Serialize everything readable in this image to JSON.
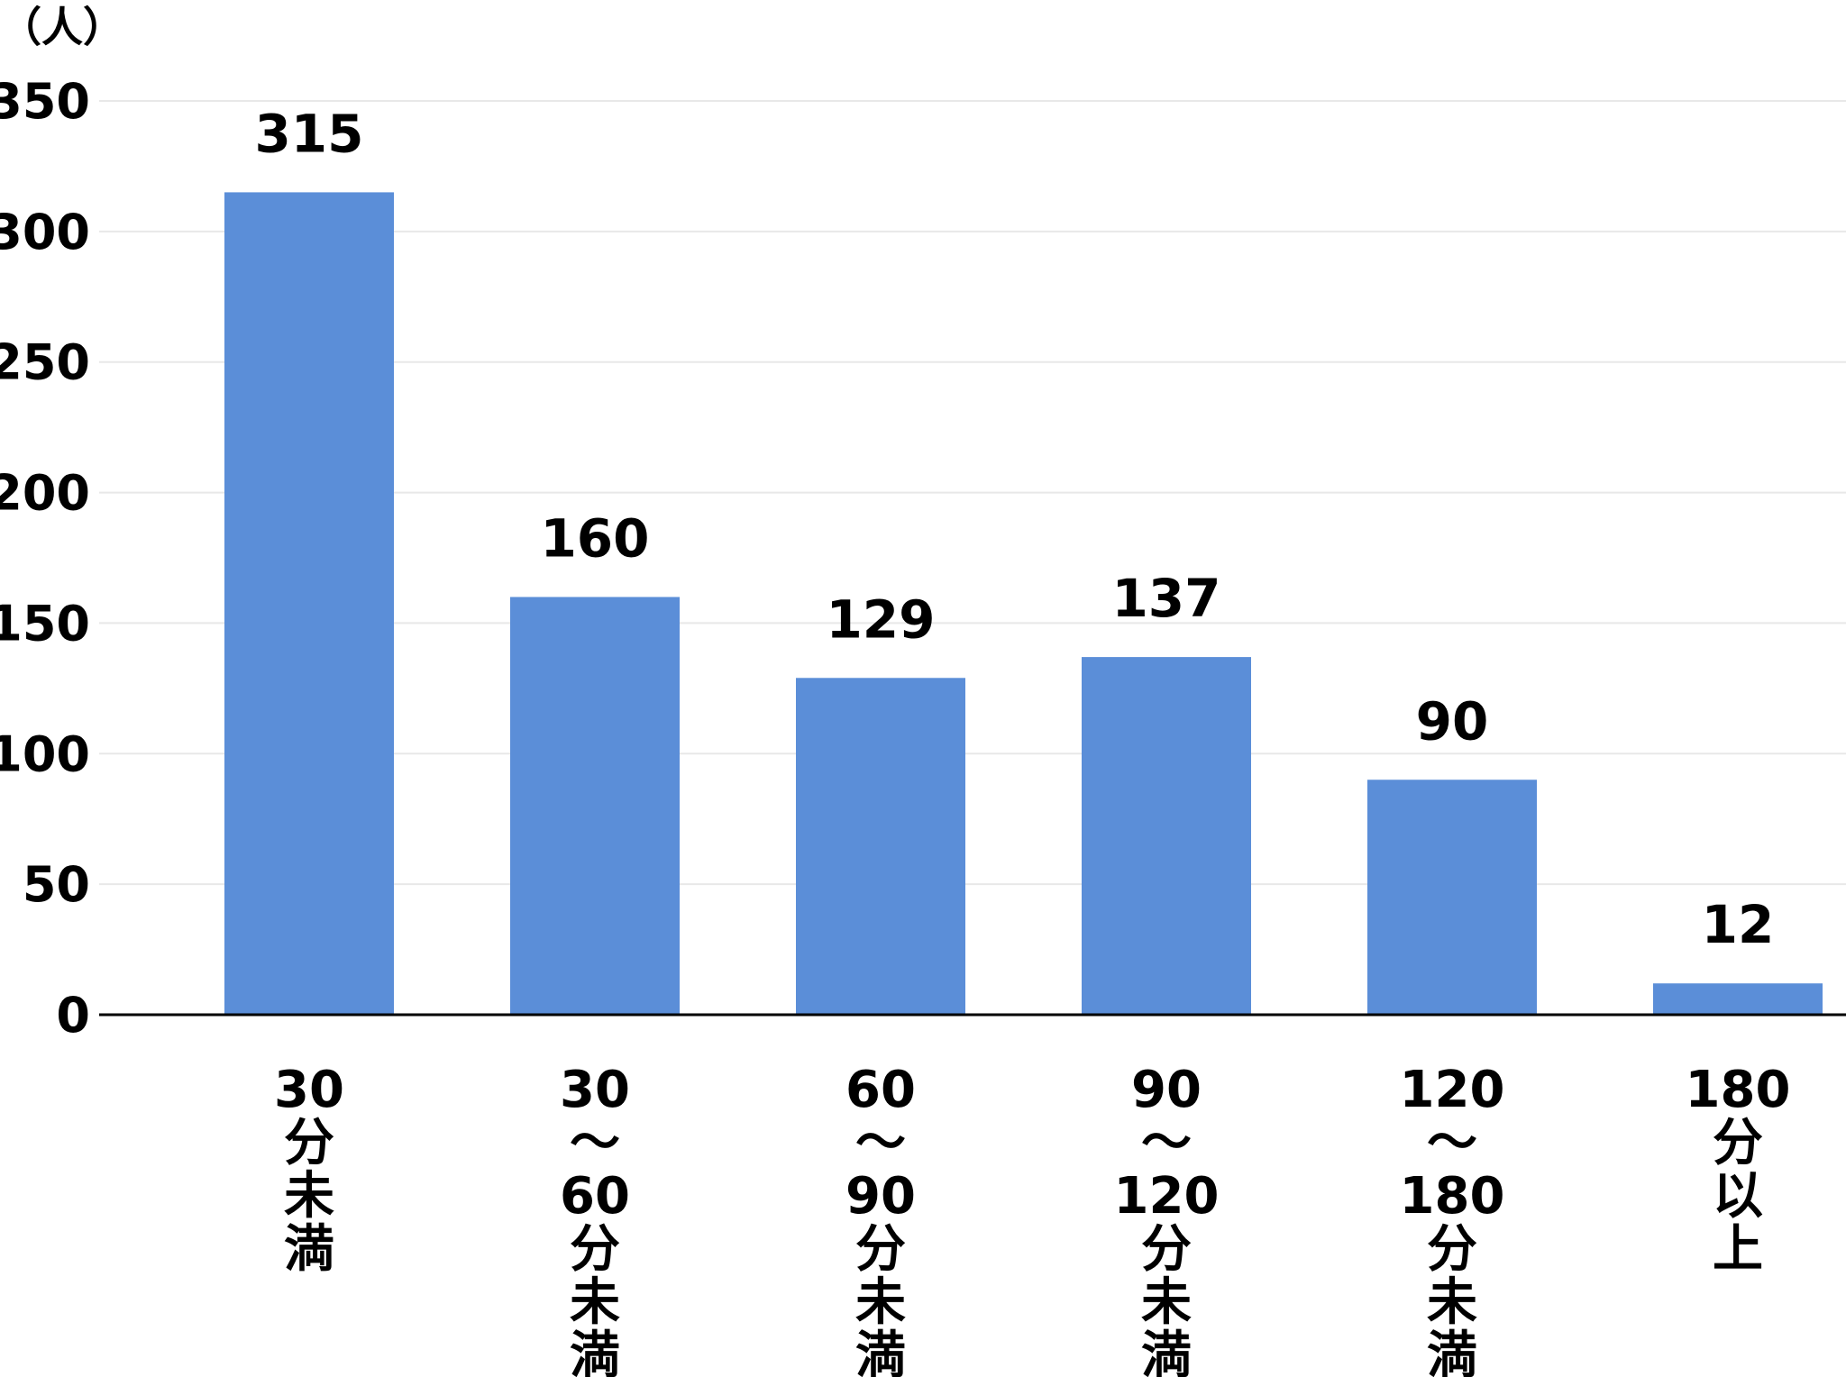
{
  "chart_data": {
    "type": "bar",
    "ylabel": "（人）",
    "ylim": [
      0,
      350
    ],
    "yticks": [
      0,
      50,
      100,
      150,
      200,
      250,
      300,
      350
    ],
    "grid": true,
    "categories": [
      [
        "30",
        "分",
        "未",
        "満"
      ],
      [
        "30",
        "～",
        "60",
        "分",
        "未",
        "満"
      ],
      [
        "60",
        "～",
        "90",
        "分",
        "未",
        "満"
      ],
      [
        "90",
        "～",
        "120",
        "分",
        "未",
        "満"
      ],
      [
        "120",
        "～",
        "180",
        "分",
        "未",
        "満"
      ],
      [
        "180",
        "分",
        "以",
        "上"
      ]
    ],
    "values": [
      315,
      160,
      129,
      137,
      90,
      12
    ],
    "data_labels": [
      "315",
      "160",
      "129",
      "137",
      "90",
      "12"
    ],
    "colors": {
      "bar": "#5B8ED8",
      "grid": "#E8E8E8",
      "axis": "#000000"
    }
  }
}
